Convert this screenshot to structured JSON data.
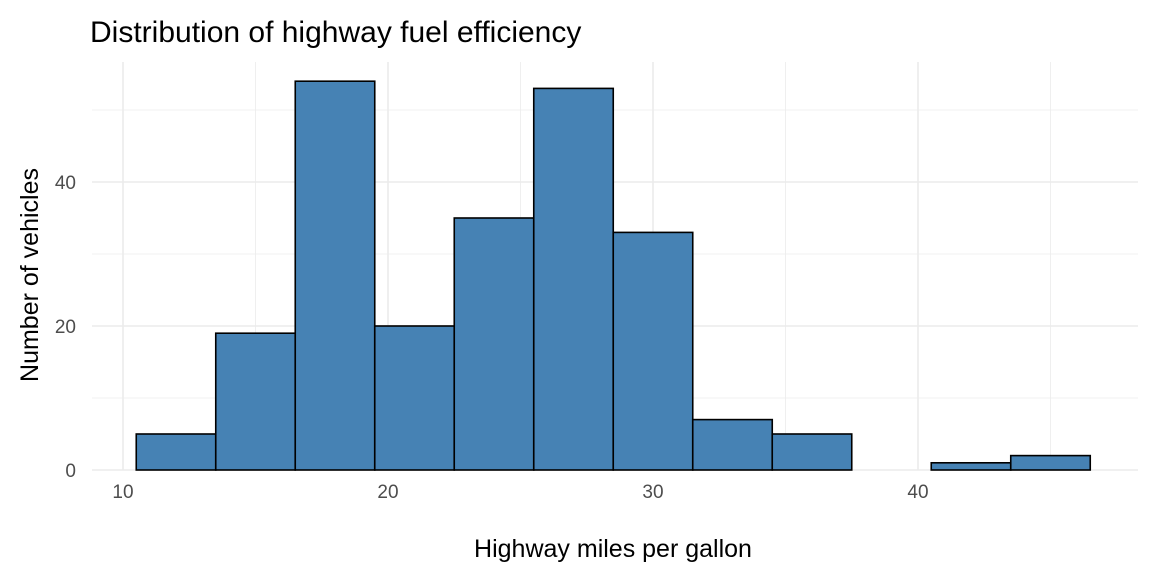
{
  "chart_data": {
    "type": "bar",
    "title": "Distribution of highway fuel efficiency",
    "xlabel": "Highway miles per gallon",
    "ylabel": "Number of vehicles",
    "binwidth": 3,
    "bin_centers": [
      12,
      15,
      18,
      21,
      24,
      27,
      30,
      33,
      36,
      39,
      42,
      45
    ],
    "values": [
      5,
      19,
      54,
      20,
      35,
      53,
      33,
      7,
      5,
      0,
      1,
      2
    ],
    "xlim": [
      8.8,
      48.2
    ],
    "ylim": [
      0,
      56.7
    ],
    "x_ticks": [
      10,
      20,
      30,
      40
    ],
    "y_ticks": [
      0,
      20,
      40
    ],
    "grid": true,
    "fill_color": "#4682B4",
    "outline_color": "#000000"
  }
}
